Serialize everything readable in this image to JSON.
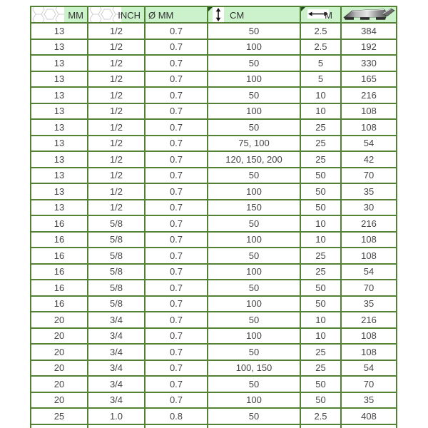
{
  "table": {
    "columns": [
      {
        "label": "MM",
        "icon": "hexagon-mesh-icon",
        "corner_marker": true
      },
      {
        "label": "INCH",
        "icon": "hexagon-mesh-icon",
        "corner_marker": false
      },
      {
        "label": "Ø MM",
        "icon": null,
        "corner_marker": false
      },
      {
        "label": "CM",
        "icon": "updown-arrow-icon",
        "corner_marker": true
      },
      {
        "label": "M",
        "icon": "leftright-arrow-icon",
        "corner_marker": true
      },
      {
        "label": "",
        "icon": "pallet-icon",
        "corner_marker": false
      }
    ],
    "rows": [
      [
        "13",
        "1/2",
        "0.7",
        "50",
        "2.5",
        "384"
      ],
      [
        "13",
        "1/2",
        "0.7",
        "100",
        "2.5",
        "192"
      ],
      [
        "13",
        "1/2",
        "0.7",
        "50",
        "5",
        "330"
      ],
      [
        "13",
        "1/2",
        "0.7",
        "100",
        "5",
        "165"
      ],
      [
        "13",
        "1/2",
        "0.7",
        "50",
        "10",
        "216"
      ],
      [
        "13",
        "1/2",
        "0.7",
        "100",
        "10",
        "108"
      ],
      [
        "13",
        "1/2",
        "0.7",
        "50",
        "25",
        "108"
      ],
      [
        "13",
        "1/2",
        "0.7",
        "75, 100",
        "25",
        "54"
      ],
      [
        "13",
        "1/2",
        "0.7",
        "120, 150, 200",
        "25",
        "42"
      ],
      [
        "13",
        "1/2",
        "0.7",
        "50",
        "50",
        "70"
      ],
      [
        "13",
        "1/2",
        "0.7",
        "100",
        "50",
        "35"
      ],
      [
        "13",
        "1/2",
        "0.7",
        "150",
        "50",
        "30"
      ],
      [
        "16",
        "5/8",
        "0.7",
        "50",
        "10",
        "216"
      ],
      [
        "16",
        "5/8",
        "0.7",
        "100",
        "10",
        "108"
      ],
      [
        "16",
        "5/8",
        "0.7",
        "50",
        "25",
        "108"
      ],
      [
        "16",
        "5/8",
        "0.7",
        "100",
        "25",
        "54"
      ],
      [
        "16",
        "5/8",
        "0.7",
        "50",
        "50",
        "70"
      ],
      [
        "16",
        "5/8",
        "0.7",
        "100",
        "50",
        "35"
      ],
      [
        "20",
        "3/4",
        "0.7",
        "50",
        "10",
        "216"
      ],
      [
        "20",
        "3/4",
        "0.7",
        "100",
        "10",
        "108"
      ],
      [
        "20",
        "3/4",
        "0.7",
        "50",
        "25",
        "108"
      ],
      [
        "20",
        "3/4",
        "0.7",
        "100, 150",
        "25",
        "54"
      ],
      [
        "20",
        "3/4",
        "0.7",
        "50",
        "50",
        "70"
      ],
      [
        "20",
        "3/4",
        "0.7",
        "100",
        "50",
        "35"
      ],
      [
        "25",
        "1.0",
        "0.8",
        "50",
        "2.5",
        "408"
      ]
    ]
  },
  "colors": {
    "header_bg": "#ccf2cc",
    "border_green": "#548235",
    "cell_text": "#454545",
    "corner_marker": "#234f23",
    "body_bg": "#ffffff"
  }
}
